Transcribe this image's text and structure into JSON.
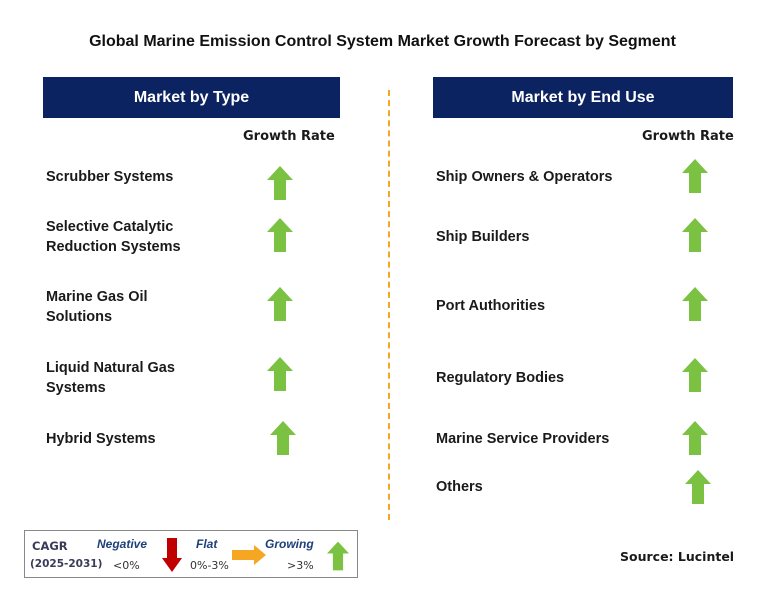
{
  "title": "Global Marine Emission Control System Market Growth Forecast by Segment",
  "left_panel": {
    "header": "Market by Type",
    "column_header": "Growth Rate",
    "items": [
      {
        "label_lines": [
          "Scrubber Systems"
        ],
        "growth": "growing"
      },
      {
        "label_lines": [
          "Selective Catalytic",
          "Reduction Systems"
        ],
        "growth": "growing"
      },
      {
        "label_lines": [
          "Marine Gas Oil",
          "Solutions"
        ],
        "growth": "growing"
      },
      {
        "label_lines": [
          "Liquid Natural Gas",
          "Systems"
        ],
        "growth": "growing"
      },
      {
        "label_lines": [
          "Hybrid Systems"
        ],
        "growth": "growing"
      }
    ]
  },
  "right_panel": {
    "header": "Market by End Use",
    "column_header": "Growth Rate",
    "items": [
      {
        "label_lines": [
          "Ship Owners & Operators"
        ],
        "growth": "growing"
      },
      {
        "label_lines": [
          "Ship Builders"
        ],
        "growth": "growing"
      },
      {
        "label_lines": [
          "Port Authorities"
        ],
        "growth": "growing"
      },
      {
        "label_lines": [
          "Regulatory Bodies"
        ],
        "growth": "growing"
      },
      {
        "label_lines": [
          "Marine Service Providers"
        ],
        "growth": "growing"
      },
      {
        "label_lines": [
          "Others"
        ],
        "growth": "growing"
      }
    ]
  },
  "legend": {
    "cagr_label": "CAGR",
    "period": "(2025-2031)",
    "negative": {
      "label": "Negative",
      "range": "<0%",
      "icon": "red-down-arrow-icon"
    },
    "flat": {
      "label": "Flat",
      "range": "0%-3%",
      "icon": "orange-right-arrow-icon"
    },
    "growing": {
      "label": "Growing",
      "range": ">3%",
      "icon": "green-up-arrow-icon"
    }
  },
  "source": "Source: Lucintel",
  "colors": {
    "header_bg": "#0b2360",
    "growing": "#7cc242",
    "negative": "#c00000",
    "flat": "#f5a623",
    "divider": "#f5a623"
  }
}
